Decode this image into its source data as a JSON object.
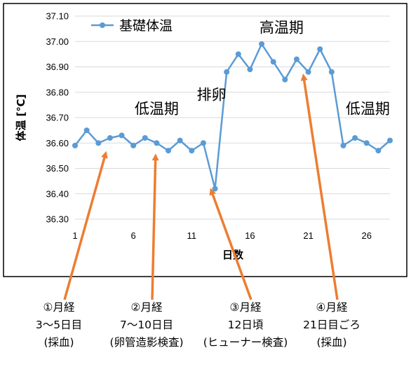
{
  "chart_data": {
    "type": "line",
    "ylabel": "体温 [℃]",
    "xlabel": "日数",
    "ylim": [
      36.3,
      37.1
    ],
    "xlim": [
      1,
      28
    ],
    "y_ticks": [
      "37.10",
      "37.00",
      "36.90",
      "36.80",
      "36.70",
      "36.60",
      "36.50",
      "36.40",
      "36.30"
    ],
    "x_ticks": [
      1,
      6,
      11,
      16,
      21,
      26
    ],
    "grid": "horizontal",
    "legend_position": "top-left",
    "series": [
      {
        "name": "基礎体温",
        "color": "#5b9bd5",
        "x": [
          1,
          2,
          3,
          4,
          5,
          6,
          7,
          8,
          9,
          10,
          11,
          12,
          13,
          14,
          15,
          16,
          17,
          18,
          19,
          20,
          21,
          22,
          23,
          24,
          25,
          26,
          27,
          28
        ],
        "values": [
          36.59,
          36.65,
          36.6,
          36.62,
          36.63,
          36.59,
          36.62,
          36.6,
          36.57,
          36.61,
          36.57,
          36.6,
          36.42,
          36.88,
          36.95,
          36.89,
          36.99,
          36.92,
          36.85,
          36.93,
          36.88,
          36.97,
          36.88,
          36.59,
          36.62,
          36.6,
          36.57,
          36.61
        ]
      }
    ],
    "phase_labels": [
      {
        "text": "低温期",
        "x": 8,
        "y": 36.715
      },
      {
        "text": "排卵",
        "x": 12.7,
        "y": 36.77
      },
      {
        "text": "高温期",
        "x": 18.7,
        "y": 37.035
      },
      {
        "text": "低温期",
        "x": 26.1,
        "y": 36.715
      }
    ],
    "annotations": [
      {
        "lines": [
          "①月経",
          "3〜5日目",
          "(採血)"
        ],
        "target_x": 3.6,
        "target_y": 36.555
      },
      {
        "lines": [
          "②月経",
          "7〜10日目",
          "(卵管造影検査)"
        ],
        "target_x": 7.9,
        "target_y": 36.545
      },
      {
        "lines": [
          "③月経",
          "12日頃",
          "(ヒューナー検査)"
        ],
        "target_x": 12.7,
        "target_y": 36.41
      },
      {
        "lines": [
          "④月経",
          "21日目ごろ",
          "(採血)"
        ],
        "target_x": 20.6,
        "target_y": 36.86
      }
    ],
    "arrow_color": "#ed7d31"
  }
}
